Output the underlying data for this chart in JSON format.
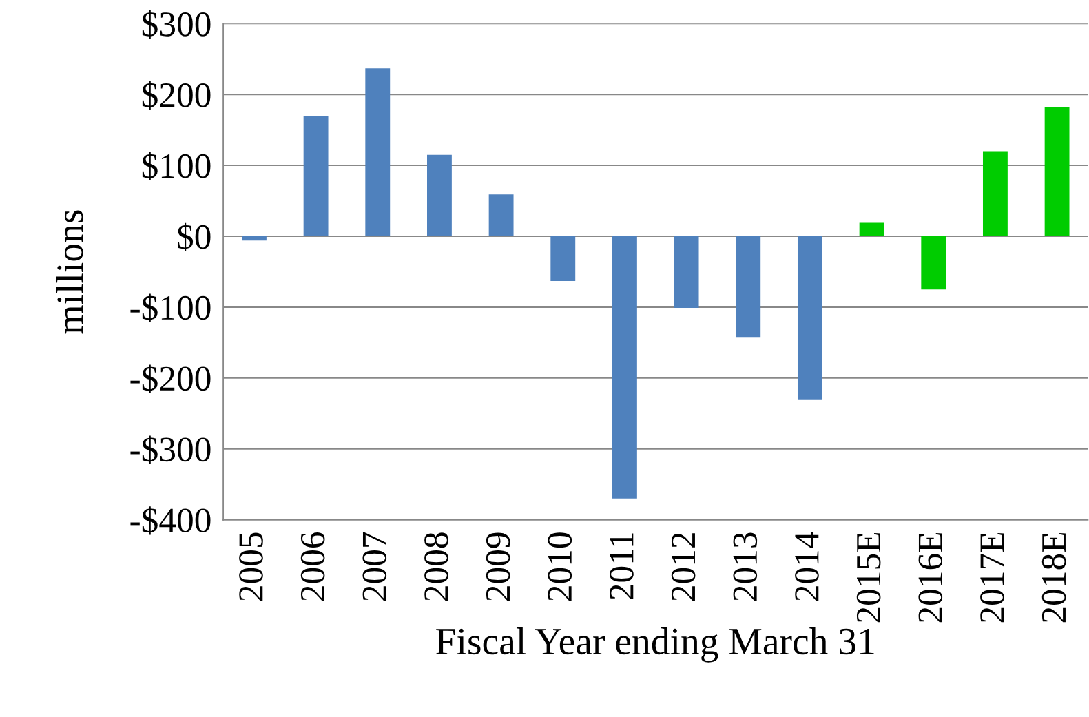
{
  "chart_data": {
    "type": "bar",
    "xlabel": "Fiscal Year ending March 31",
    "ylabel": "millions",
    "categories": [
      "2005",
      "2006",
      "2007",
      "2008",
      "2009",
      "2010",
      "2011",
      "2012",
      "2013",
      "2014",
      "2015E",
      "2016E",
      "2017E",
      "2018E"
    ],
    "values": [
      -6,
      170,
      237,
      115,
      59,
      -63,
      -370,
      -101,
      -143,
      -231,
      19,
      -75,
      120,
      182
    ],
    "colors": [
      "#4f81bd",
      "#4f81bd",
      "#4f81bd",
      "#4f81bd",
      "#4f81bd",
      "#4f81bd",
      "#4f81bd",
      "#4f81bd",
      "#4f81bd",
      "#4f81bd",
      "#00cc00",
      "#00cc00",
      "#00cc00",
      "#00cc00"
    ],
    "ylim": [
      -400,
      300
    ],
    "yticks": [
      {
        "value": -400,
        "label": "-$400"
      },
      {
        "value": -300,
        "label": "-$300"
      },
      {
        "value": -200,
        "label": "-$200"
      },
      {
        "value": -100,
        "label": "-$100"
      },
      {
        "value": 0,
        "label": "$0"
      },
      {
        "value": 100,
        "label": "$100"
      },
      {
        "value": 200,
        "label": "$200"
      },
      {
        "value": 300,
        "label": "$300"
      }
    ],
    "grid": "y"
  }
}
